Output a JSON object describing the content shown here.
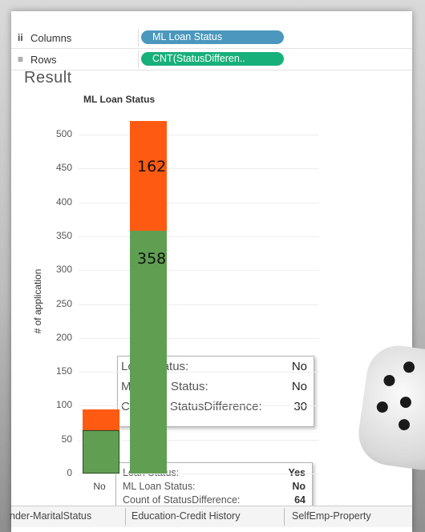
{
  "shelves": {
    "columns": {
      "label": "Columns",
      "pill": "ML Loan Status"
    },
    "rows": {
      "label": "Rows",
      "pill": "CNT(StatusDifferen.."
    }
  },
  "sheet_title": "Result",
  "chart_data": {
    "type": "bar",
    "title": "ML Loan Status",
    "ylabel": "# of application",
    "ylim": [
      0,
      520
    ],
    "yticks": [
      0,
      50,
      100,
      150,
      200,
      250,
      300,
      350,
      400,
      450,
      500
    ],
    "categories": [
      "No",
      "Yes"
    ],
    "series": [
      {
        "values": [
          64,
          358
        ],
        "color": "#609f52"
      },
      {
        "values": [
          30,
          162
        ],
        "color": "#ff5a12"
      }
    ],
    "data_labels": [
      "162",
      "358"
    ]
  },
  "tooltips": {
    "no": {
      "rows": [
        {
          "key": "Loan Status:",
          "value": "No"
        },
        {
          "key": "ML Loan Status:",
          "value": "No"
        },
        {
          "key": "Count of StatusDifference:",
          "value": "30"
        }
      ]
    },
    "yes": {
      "rows": [
        {
          "key": "Loan Status:",
          "value": "Yes"
        },
        {
          "key": "ML Loan Status:",
          "value": "No"
        },
        {
          "key": "Count of StatusDifference:",
          "value": "64"
        }
      ]
    }
  },
  "sheet_tabs": [
    "nder-MaritalStatus",
    "Education-Credit History",
    "SelfEmp-Property"
  ],
  "icons": {
    "columns": "columns-icon",
    "rows": "rows-icon",
    "cursor": "hand-pointer-icon"
  }
}
